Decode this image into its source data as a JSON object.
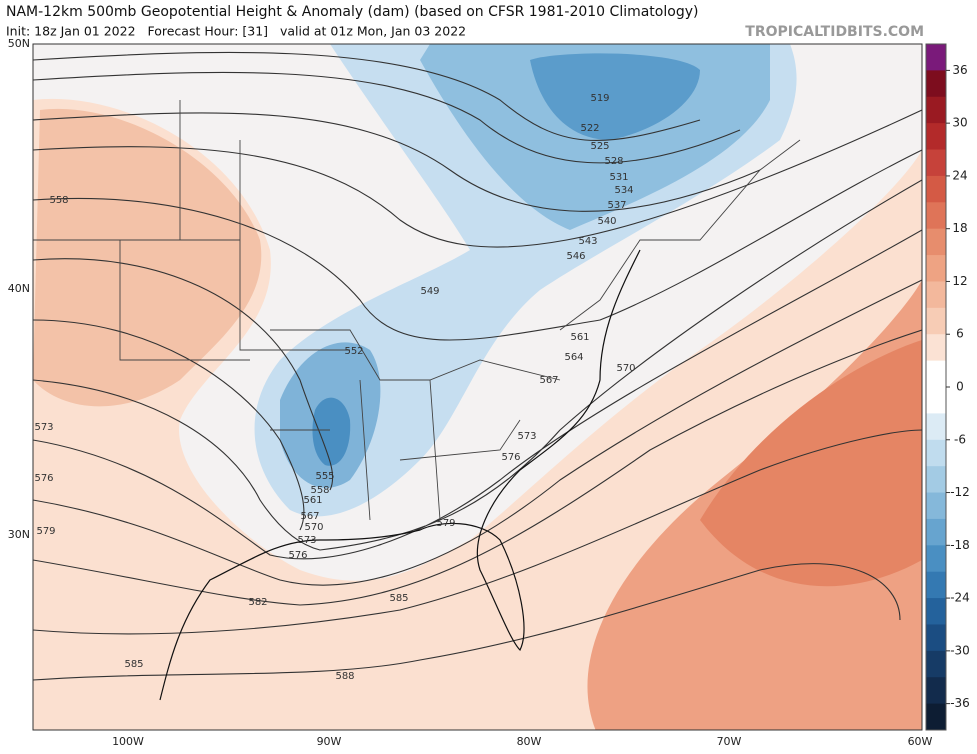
{
  "header": {
    "title": "NAM-12km 500mb Geopotential Height & Anomaly (dam) (based on CFSR 1981-2010 Climatology)",
    "subtitle": "Init: 18z Jan 01 2022   Forecast Hour: [31]   valid at 01z Mon, Jan 03 2022",
    "watermark": "TROPICALTIDBITS.COM"
  },
  "map": {
    "lat_labels": [
      "50N",
      "40N",
      "30N"
    ],
    "lon_labels": [
      "100W",
      "90W",
      "80W",
      "70W",
      "60W"
    ],
    "contour_labels": [
      519,
      522,
      525,
      528,
      531,
      534,
      537,
      540,
      543,
      546,
      549,
      552,
      561,
      564,
      567,
      570,
      573,
      576,
      555,
      558,
      561,
      567,
      570,
      573,
      576,
      579,
      582,
      585,
      588,
      585,
      558,
      573,
      576,
      579
    ]
  },
  "colorbar": {
    "ticks": [
      36,
      30,
      24,
      18,
      12,
      6,
      0,
      -6,
      -12,
      -18,
      -24,
      -30,
      -36
    ],
    "colors": [
      "#7a1a7a",
      "#7d0d1e",
      "#9a1a22",
      "#b32a2a",
      "#c6423a",
      "#d45a45",
      "#df7458",
      "#e78d6d",
      "#ee a383",
      "#f3b89c",
      "#f7ccb5",
      "#fbe2d4",
      "#ffffff",
      "#ffffff",
      "#dcebf5",
      "#c0dcee",
      "#a3cbe4",
      "#85b8da",
      "#67a4cf",
      "#4a8fc2",
      "#3479b2",
      "#24629c",
      "#1b4d82",
      "#163b66",
      "#122b4c",
      "#0d1d33"
    ]
  }
}
